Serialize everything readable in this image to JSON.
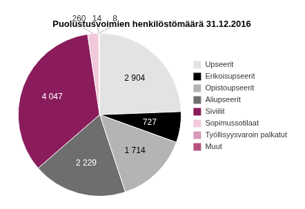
{
  "chart_data": {
    "type": "pie",
    "title": "Puolustusvoimien henkilöstömäärä 31.12.2016",
    "categories": [
      "Upseerit",
      "Erikoisupseerit",
      "Opistoupseerit",
      "Aliupseerit",
      "Siviilit",
      "Sopimussotilaat",
      "Työllisyysvaroin palkatut",
      "Muut"
    ],
    "values": [
      2904,
      727,
      1714,
      2229,
      4047,
      260,
      14,
      8
    ],
    "value_labels": [
      "2 904",
      "727",
      "1 714",
      "2 229",
      "4 047",
      "260",
      "14",
      "8"
    ],
    "colors": [
      "#e3e3e3",
      "#000000",
      "#b4b4b4",
      "#6e6e6e",
      "#8a1c5c",
      "#f2c9da",
      "#d99abb",
      "#b5527f"
    ],
    "legend": "right",
    "data_labels": true
  }
}
